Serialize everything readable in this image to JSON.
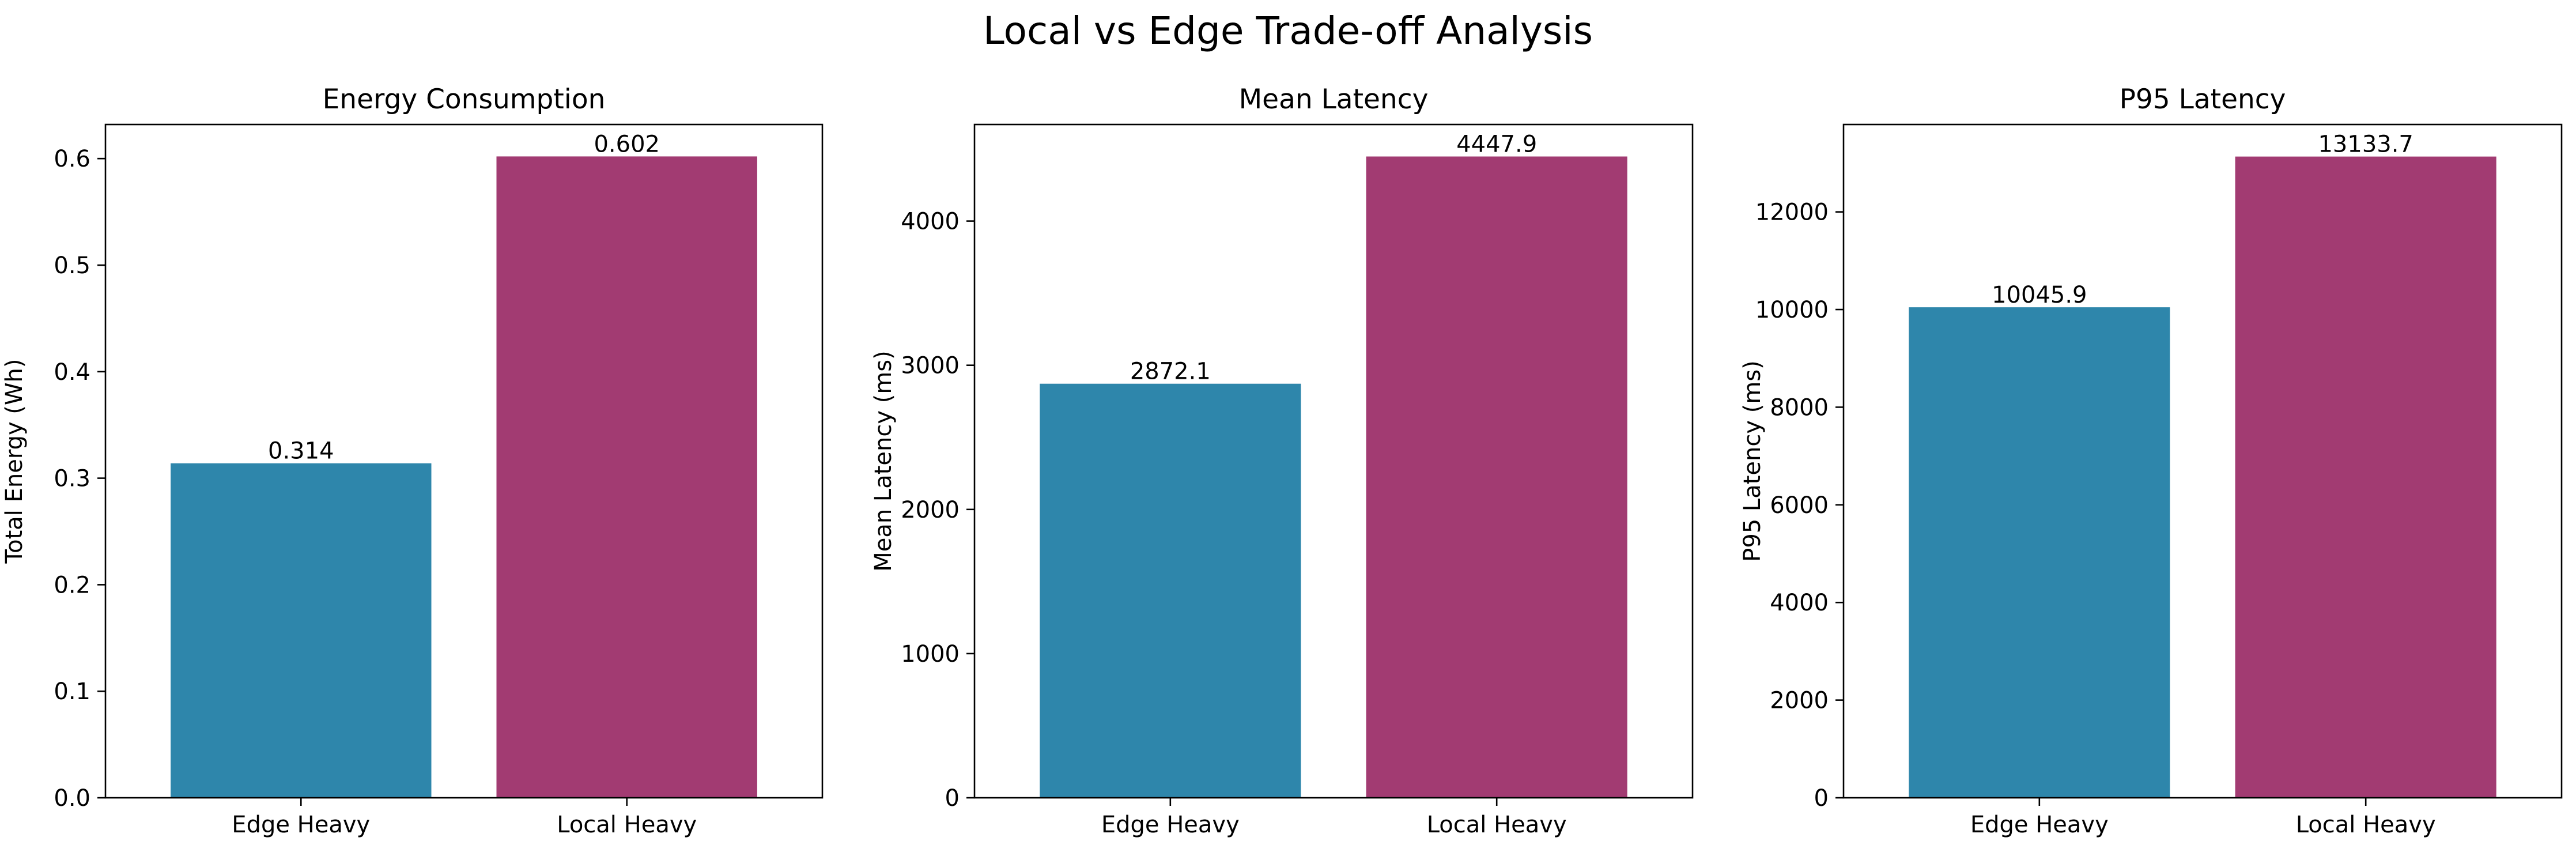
{
  "figure": {
    "title": "Local vs Edge Trade-off Analysis"
  },
  "colors": {
    "edge": "#2e86ab",
    "local": "#a23b72"
  },
  "chart_data": [
    {
      "type": "bar",
      "title": "Energy Consumption",
      "xlabel": "",
      "ylabel": "Total Energy (Wh)",
      "categories": [
        "Edge Heavy",
        "Local Heavy"
      ],
      "values": [
        0.314,
        0.602
      ],
      "value_labels": [
        "0.314",
        "0.602"
      ],
      "ylim": [
        0,
        0.632
      ],
      "yticks": [
        0.0,
        0.1,
        0.2,
        0.3,
        0.4,
        0.5,
        0.6
      ],
      "ytick_labels": [
        "0.0",
        "0.1",
        "0.2",
        "0.3",
        "0.4",
        "0.5",
        "0.6"
      ],
      "grid": false
    },
    {
      "type": "bar",
      "title": "Mean Latency",
      "xlabel": "",
      "ylabel": "Mean Latency (ms)",
      "categories": [
        "Edge Heavy",
        "Local Heavy"
      ],
      "values": [
        2872.1,
        4447.9
      ],
      "value_labels": [
        "2872.1",
        "4447.9"
      ],
      "ylim": [
        0,
        4670
      ],
      "yticks": [
        0,
        1000,
        2000,
        3000,
        4000
      ],
      "ytick_labels": [
        "0",
        "1000",
        "2000",
        "3000",
        "4000"
      ],
      "grid": false
    },
    {
      "type": "bar",
      "title": "P95 Latency",
      "xlabel": "",
      "ylabel": "P95 Latency (ms)",
      "categories": [
        "Edge Heavy",
        "Local Heavy"
      ],
      "values": [
        10045.9,
        13133.7
      ],
      "value_labels": [
        "10045.9",
        "13133.7"
      ],
      "ylim": [
        0,
        13790
      ],
      "yticks": [
        0,
        2000,
        4000,
        6000,
        8000,
        10000,
        12000
      ],
      "ytick_labels": [
        "0",
        "2000",
        "4000",
        "6000",
        "8000",
        "10000",
        "12000"
      ],
      "grid": false
    }
  ]
}
